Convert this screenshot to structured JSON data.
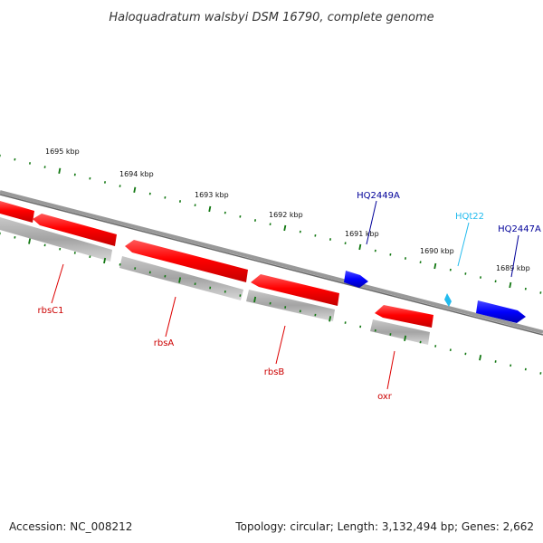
{
  "title": "Haloquadratum walsbyi DSM 16790, complete genome",
  "footer": {
    "accession": "Accession: NC_008212",
    "summary": "Topology: circular; Length: 3,132,494 bp; Genes: 2,662"
  },
  "ruler": {
    "labels": [
      "1695 kbp",
      "1694 kbp",
      "1693 kbp",
      "1692 kbp",
      "1691 kbp",
      "1690 kbp",
      "1689 kbp"
    ]
  },
  "genes": {
    "reverse_red": [
      "rbsC1",
      "rbsA",
      "rbsB",
      "oxr"
    ],
    "forward_blue": [
      "HQ2449A",
      "HQ2447A"
    ],
    "trna": [
      "HQt22"
    ]
  },
  "colors": {
    "cds": "#ff0000",
    "cds_label": "#cc0000",
    "blue_gene": "#0000ff",
    "blue_label": "#000099",
    "trna": "#22bbee",
    "tick": "#117711",
    "backbone": "#808080",
    "shadow": "#a8a8a8"
  }
}
